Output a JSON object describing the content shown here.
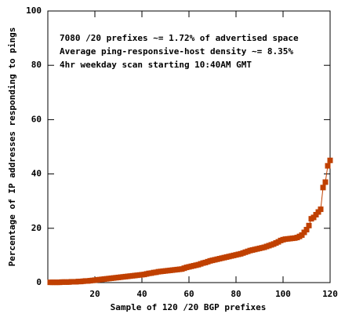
{
  "chart_data": {
    "type": "line",
    "xlabel": "Sample of 120 /20 BGP prefixes",
    "ylabel": "Percentage of IP addresses responding to pings",
    "annotations": [
      "7080 /20 prefixes ~= 1.72% of advertised space",
      "Average ping-responsive-host density ~= 8.35%",
      "4hr weekday scan starting 10:40AM GMT"
    ],
    "x": [
      1,
      2,
      3,
      4,
      5,
      6,
      7,
      8,
      9,
      10,
      11,
      12,
      13,
      14,
      15,
      16,
      17,
      18,
      19,
      20,
      21,
      22,
      23,
      24,
      25,
      26,
      27,
      28,
      29,
      30,
      31,
      32,
      33,
      34,
      35,
      36,
      37,
      38,
      39,
      40,
      41,
      42,
      43,
      44,
      45,
      46,
      47,
      48,
      49,
      50,
      51,
      52,
      53,
      54,
      55,
      56,
      57,
      58,
      59,
      60,
      61,
      62,
      63,
      64,
      65,
      66,
      67,
      68,
      69,
      70,
      71,
      72,
      73,
      74,
      75,
      76,
      77,
      78,
      79,
      80,
      81,
      82,
      83,
      84,
      85,
      86,
      87,
      88,
      89,
      90,
      91,
      92,
      93,
      94,
      95,
      96,
      97,
      98,
      99,
      100,
      101,
      102,
      103,
      104,
      105,
      106,
      107,
      108,
      109,
      110,
      111,
      112,
      113,
      114,
      115,
      116,
      117,
      118,
      119,
      120
    ],
    "values": [
      0.1,
      0.1,
      0.1,
      0.1,
      0.1,
      0.2,
      0.2,
      0.2,
      0.2,
      0.3,
      0.3,
      0.3,
      0.4,
      0.4,
      0.5,
      0.6,
      0.6,
      0.7,
      0.8,
      0.9,
      1.0,
      1.1,
      1.2,
      1.3,
      1.4,
      1.5,
      1.6,
      1.7,
      1.8,
      1.9,
      2.0,
      2.1,
      2.2,
      2.3,
      2.4,
      2.5,
      2.6,
      2.7,
      2.8,
      2.9,
      3.0,
      3.2,
      3.4,
      3.5,
      3.7,
      3.8,
      4.0,
      4.1,
      4.2,
      4.3,
      4.4,
      4.5,
      4.6,
      4.7,
      4.8,
      4.9,
      5.0,
      5.3,
      5.6,
      5.8,
      6.0,
      6.2,
      6.4,
      6.6,
      6.9,
      7.2,
      7.4,
      7.7,
      8.0,
      8.2,
      8.4,
      8.6,
      8.8,
      9.0,
      9.2,
      9.4,
      9.6,
      9.8,
      10.0,
      10.2,
      10.4,
      10.6,
      10.9,
      11.2,
      11.5,
      11.8,
      12.0,
      12.2,
      12.4,
      12.6,
      12.8,
      13.0,
      13.3,
      13.6,
      13.9,
      14.2,
      14.6,
      15.0,
      15.5,
      15.8,
      16.0,
      16.1,
      16.2,
      16.3,
      16.4,
      16.6,
      17.0,
      17.5,
      18.5,
      19.5,
      21.0,
      23.5,
      24.0,
      25.0,
      26.0,
      27.0,
      35.0,
      37.0,
      43.0,
      45.0
    ],
    "color": "#c04000",
    "xlim": [
      0,
      120
    ],
    "xticks": [
      20,
      40,
      60,
      80,
      100,
      120
    ],
    "ylim": [
      0,
      100
    ],
    "yticks": [
      0,
      20,
      40,
      60,
      80,
      100
    ]
  }
}
